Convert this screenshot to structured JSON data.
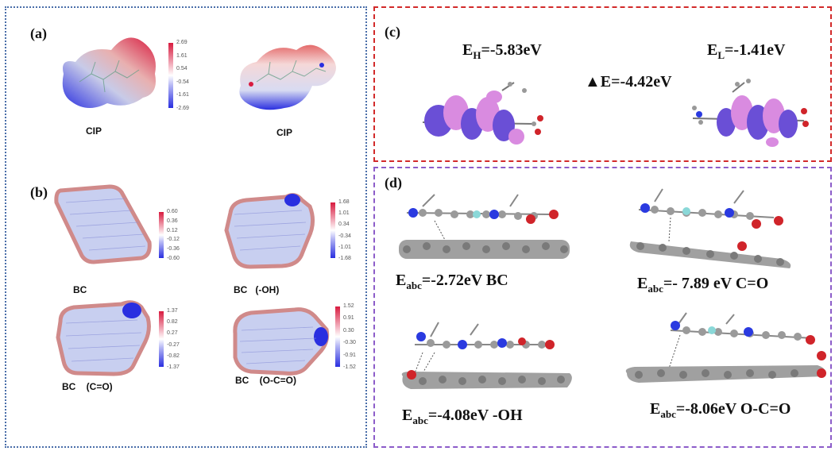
{
  "panel_a": {
    "label": "(a)",
    "molecule_1": "CIP",
    "molecule_2": "CIP",
    "colorbar_ticks": [
      "2.69",
      "1.61",
      "0.54",
      "-0.54",
      "-1.61",
      "-2.69"
    ]
  },
  "panel_b": {
    "label": "(b)",
    "items": [
      {
        "name": "BC",
        "ticks": [
          "0.60",
          "0.36",
          "0.12",
          "-0.12",
          "-0.36",
          "-0.60"
        ]
      },
      {
        "name": "BC   (-OH)",
        "ticks": [
          "1.68",
          "1.01",
          "0.34",
          "-0.34",
          "-1.01",
          "-1.68"
        ]
      },
      {
        "name": "BC    (C=O)",
        "ticks": [
          "1.37",
          "0.82",
          "0.27",
          "-0.27",
          "-0.82",
          "-1.37"
        ]
      },
      {
        "name": "BC    (O-C=O)",
        "ticks": [
          "1.52",
          "0.91",
          "0.30",
          "-0.30",
          "-0.91",
          "-1.52"
        ]
      }
    ]
  },
  "panel_c": {
    "label": "(c)",
    "eh_main": "E",
    "eh_sub": "H",
    "eh_value": "=-5.83eV",
    "el_main": "E",
    "el_sub": "L",
    "el_value": "=-1.41eV",
    "gap": "▲E=-4.42eV"
  },
  "panel_d": {
    "label": "(d)",
    "items": [
      {
        "main": "E",
        "sub": "abc",
        "value": "=-2.72eV   BC"
      },
      {
        "main": "E",
        "sub": "abc",
        "value": "=- 7.89  eV   C=O"
      },
      {
        "main": "E",
        "sub": "abc",
        "value": "=-4.08eV   -OH"
      },
      {
        "main": "E",
        "sub": "abc",
        "value": "=-8.06eV   O-C=O"
      }
    ]
  },
  "colors": {
    "left_border": "#4a6ea9",
    "c_border": "#d22a2a",
    "d_border": "#8c5cc9",
    "positive": "#d81b3f",
    "negative": "#2a2fe0",
    "homo_lobe": "#d98be0",
    "lumo_lobe": "#6a4fd6",
    "atom_carbon": "#8a8a8a"
  }
}
